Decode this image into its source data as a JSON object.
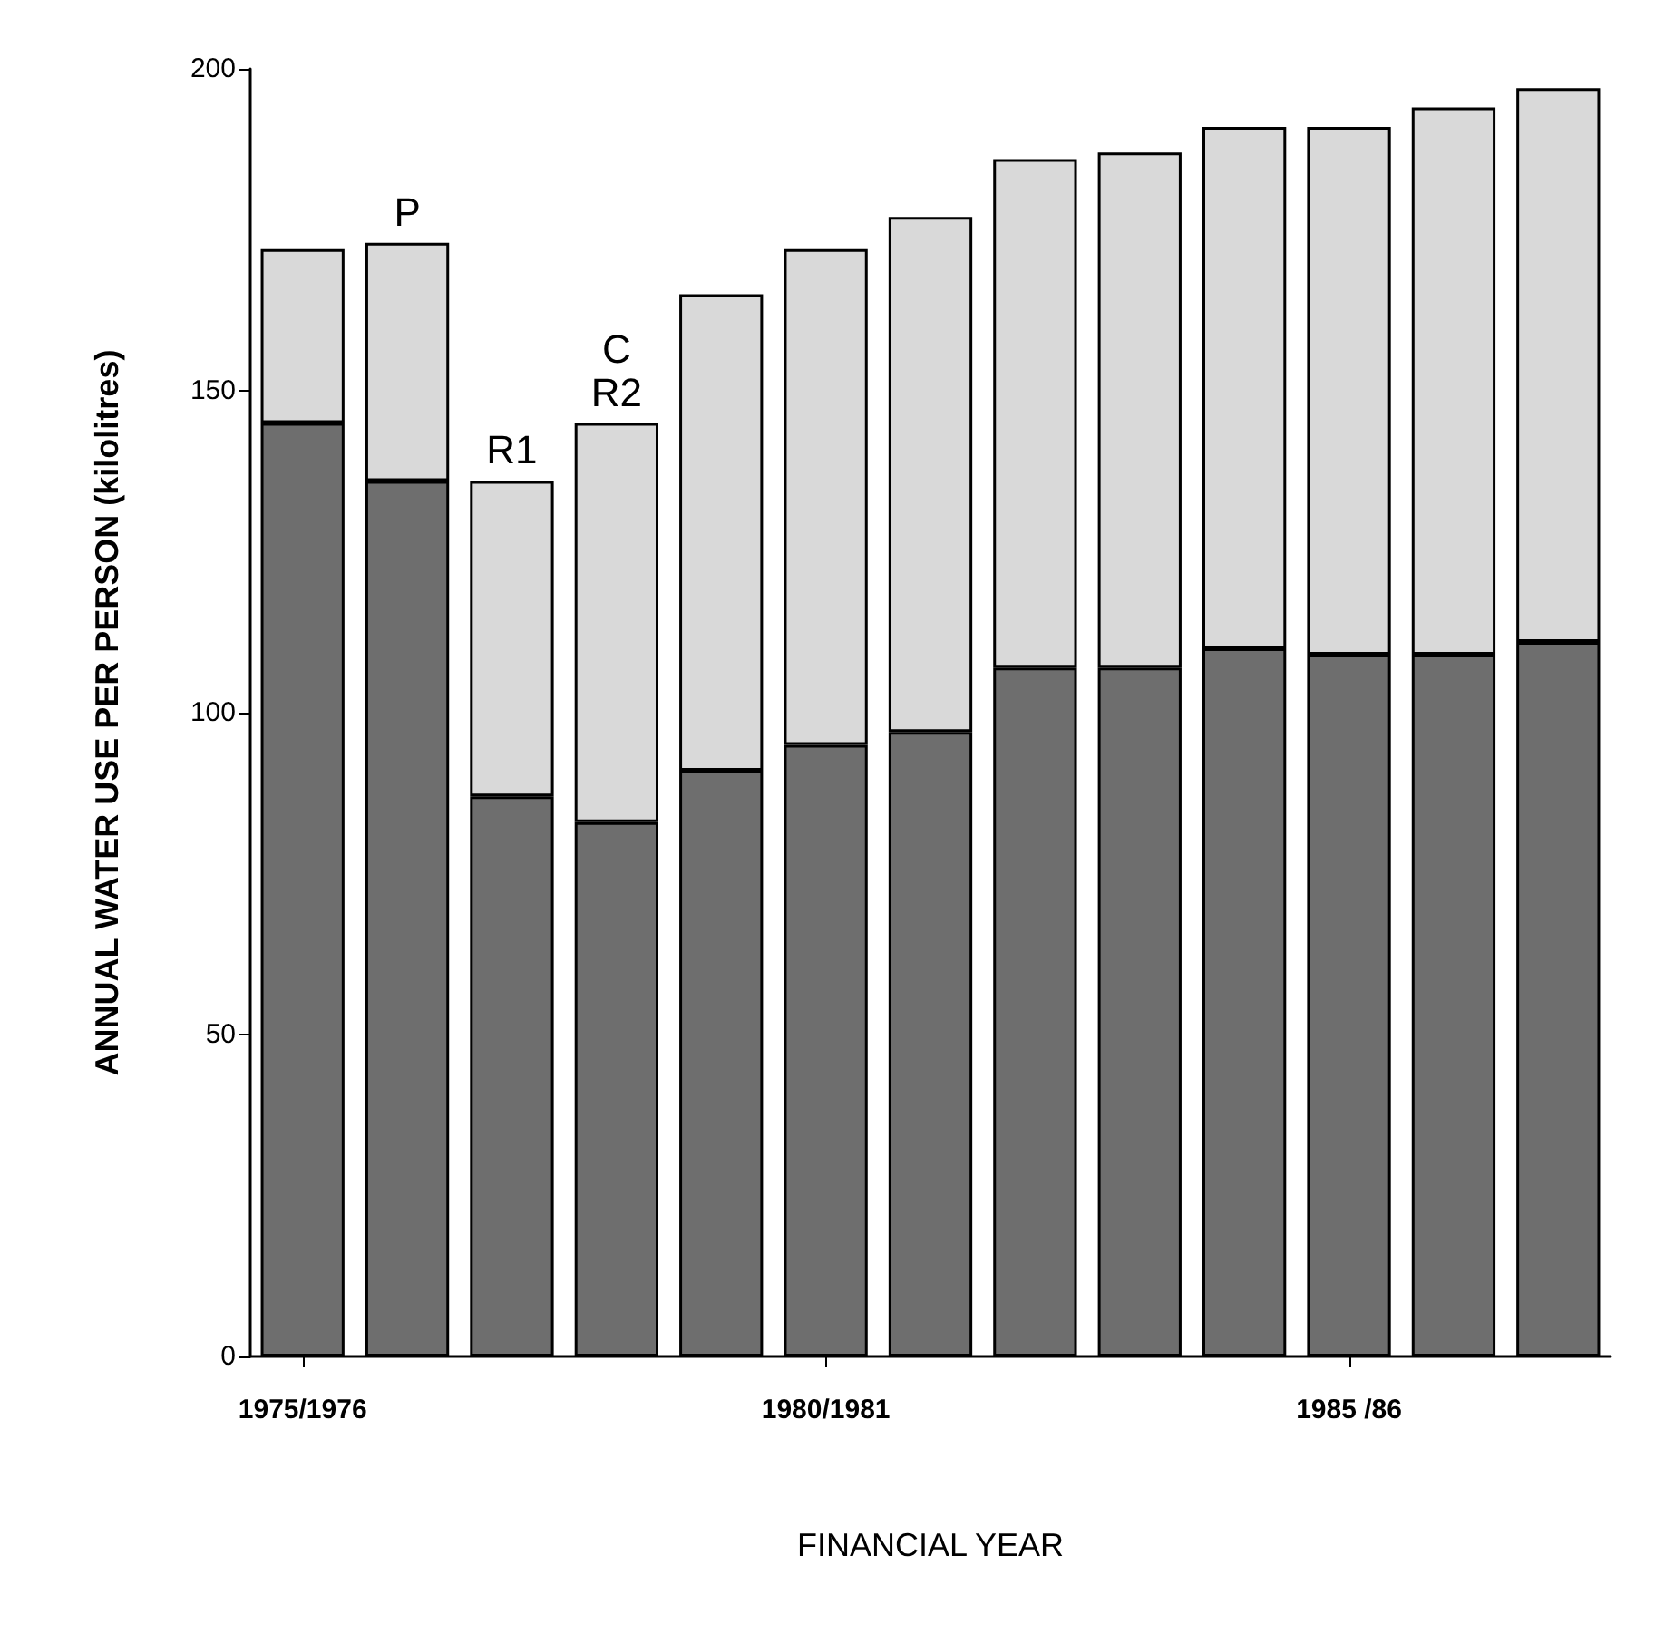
{
  "chart_data": {
    "type": "bar",
    "stacked": true,
    "xlabel": "FINANCIAL YEAR",
    "ylabel": "ANNUAL WATER USE PER PERSON (kilolitres)",
    "categories": [
      "1975/1976",
      null,
      null,
      null,
      null,
      "1980/1981",
      null,
      null,
      null,
      null,
      "1985 /86",
      null,
      null
    ],
    "series": [
      {
        "color": "#6e6e6e",
        "values": [
          145,
          136,
          87,
          83,
          91,
          95,
          97,
          107,
          107,
          110,
          109,
          109,
          111
        ]
      },
      {
        "color": "#d9d9d9",
        "values": [
          27,
          37,
          49,
          62,
          74,
          77,
          80,
          79,
          80,
          81,
          82,
          85,
          86
        ],
        "value_labels": [
          null,
          "P",
          "R1",
          "C\nR2",
          null,
          null,
          null,
          null,
          null,
          null,
          null,
          null,
          null
        ]
      }
    ],
    "ylim": [
      0,
      200
    ],
    "yticks": [
      0,
      50,
      100,
      150,
      200
    ],
    "grid": false
  }
}
